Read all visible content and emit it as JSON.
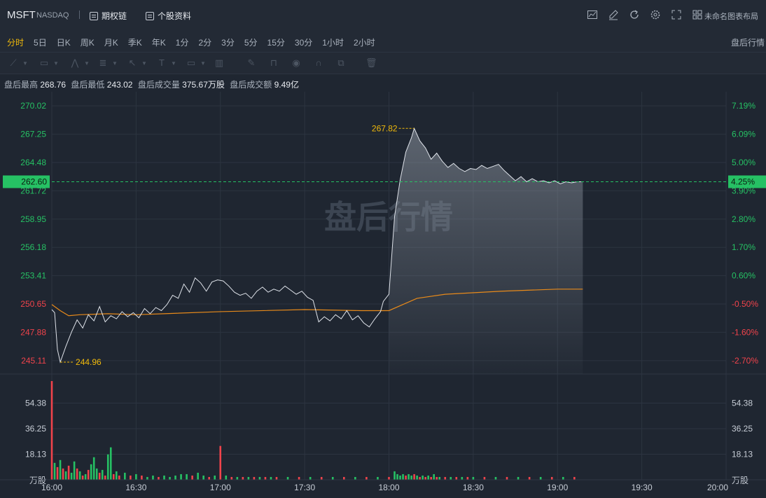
{
  "header": {
    "symbol": "MSFT",
    "exchange": "NASDAQ",
    "option_chain_label": "期权链",
    "profile_label": "个股资料",
    "layout_label": "未命名图表布局"
  },
  "periods": [
    "分时",
    "5日",
    "日K",
    "周K",
    "月K",
    "季K",
    "年K",
    "1分",
    "2分",
    "3分",
    "5分",
    "15分",
    "30分",
    "1小时",
    "2小时"
  ],
  "active_period": "分时",
  "session_label": "盘后行情",
  "info": {
    "high_label": "盘后最高",
    "high": "268.76",
    "low_label": "盘后最低",
    "low": "243.02",
    "volume_label": "盘后成交量",
    "volume": "375.67万股",
    "turnover_label": "盘后成交额",
    "turnover": "9.49亿"
  },
  "watermark": "盘后行情",
  "colors": {
    "up": "#26c164",
    "down": "#f0434b",
    "price_line": "#dfe3ea",
    "avg_line": "#e88a1a",
    "label": "#f0b90b"
  },
  "chart_data": {
    "type": "line",
    "x_ticks": [
      "16:00",
      "16:30",
      "17:00",
      "17:30",
      "18:00",
      "18:30",
      "19:00",
      "19:30",
      "20:00"
    ],
    "y_ticks_left": [
      "270.02",
      "267.25",
      "264.48",
      "261.72",
      "258.95",
      "256.18",
      "253.41",
      "250.65",
      "247.88",
      "245.11"
    ],
    "y_ticks_right": [
      "7.19%",
      "6.09%",
      "5.00%",
      "3.90%",
      "2.80%",
      "1.70%",
      "0.60%",
      "-0.50%",
      "-1.60%",
      "-2.70%"
    ],
    "current_price": "262.60",
    "current_pct": "4.25%",
    "max_label": "267.82",
    "min_label": "244.96",
    "y_range": [
      243.8,
      271.4
    ],
    "price_series": [
      {
        "t": "16:00",
        "v": 250.1
      },
      {
        "t": "16:01",
        "v": 249.8
      },
      {
        "t": "16:02",
        "v": 246.2
      },
      {
        "t": "16:03",
        "v": 244.96
      },
      {
        "t": "16:05",
        "v": 246.5
      },
      {
        "t": "16:07",
        "v": 247.9
      },
      {
        "t": "16:09",
        "v": 249.1
      },
      {
        "t": "16:11",
        "v": 248.3
      },
      {
        "t": "16:13",
        "v": 249.6
      },
      {
        "t": "16:15",
        "v": 249.0
      },
      {
        "t": "16:17",
        "v": 250.4
      },
      {
        "t": "16:19",
        "v": 248.9
      },
      {
        "t": "16:21",
        "v": 249.5
      },
      {
        "t": "16:23",
        "v": 249.2
      },
      {
        "t": "16:25",
        "v": 249.9
      },
      {
        "t": "16:27",
        "v": 249.4
      },
      {
        "t": "16:29",
        "v": 249.8
      },
      {
        "t": "16:31",
        "v": 249.3
      },
      {
        "t": "16:33",
        "v": 250.2
      },
      {
        "t": "16:35",
        "v": 249.7
      },
      {
        "t": "16:37",
        "v": 250.3
      },
      {
        "t": "16:39",
        "v": 250.0
      },
      {
        "t": "16:41",
        "v": 250.6
      },
      {
        "t": "16:43",
        "v": 251.5
      },
      {
        "t": "16:45",
        "v": 251.2
      },
      {
        "t": "16:47",
        "v": 252.6
      },
      {
        "t": "16:49",
        "v": 251.8
      },
      {
        "t": "16:51",
        "v": 253.2
      },
      {
        "t": "16:53",
        "v": 252.7
      },
      {
        "t": "16:55",
        "v": 251.9
      },
      {
        "t": "16:57",
        "v": 252.8
      },
      {
        "t": "16:59",
        "v": 253.0
      },
      {
        "t": "17:01",
        "v": 252.9
      },
      {
        "t": "17:03",
        "v": 252.4
      },
      {
        "t": "17:05",
        "v": 251.8
      },
      {
        "t": "17:07",
        "v": 251.5
      },
      {
        "t": "17:09",
        "v": 251.7
      },
      {
        "t": "17:11",
        "v": 251.2
      },
      {
        "t": "17:13",
        "v": 251.9
      },
      {
        "t": "17:15",
        "v": 252.3
      },
      {
        "t": "17:17",
        "v": 251.8
      },
      {
        "t": "17:19",
        "v": 252.1
      },
      {
        "t": "17:21",
        "v": 251.9
      },
      {
        "t": "17:23",
        "v": 252.4
      },
      {
        "t": "17:25",
        "v": 252.0
      },
      {
        "t": "17:27",
        "v": 251.6
      },
      {
        "t": "17:29",
        "v": 251.9
      },
      {
        "t": "17:31",
        "v": 251.3
      },
      {
        "t": "17:33",
        "v": 251.0
      },
      {
        "t": "17:35",
        "v": 248.9
      },
      {
        "t": "17:37",
        "v": 249.4
      },
      {
        "t": "17:39",
        "v": 249.0
      },
      {
        "t": "17:41",
        "v": 249.6
      },
      {
        "t": "17:43",
        "v": 249.2
      },
      {
        "t": "17:45",
        "v": 250.0
      },
      {
        "t": "17:47",
        "v": 249.1
      },
      {
        "t": "17:49",
        "v": 249.5
      },
      {
        "t": "17:51",
        "v": 248.8
      },
      {
        "t": "17:53",
        "v": 248.4
      },
      {
        "t": "17:55",
        "v": 249.2
      },
      {
        "t": "17:57",
        "v": 249.9
      },
      {
        "t": "17:58",
        "v": 250.9
      },
      {
        "t": "18:00",
        "v": 251.6
      },
      {
        "t": "18:02",
        "v": 259.2
      },
      {
        "t": "18:04",
        "v": 262.8
      },
      {
        "t": "18:06",
        "v": 265.5
      },
      {
        "t": "18:08",
        "v": 266.9
      },
      {
        "t": "18:09",
        "v": 267.82
      },
      {
        "t": "18:11",
        "v": 266.6
      },
      {
        "t": "18:13",
        "v": 265.9
      },
      {
        "t": "18:15",
        "v": 264.8
      },
      {
        "t": "18:17",
        "v": 265.4
      },
      {
        "t": "18:19",
        "v": 264.6
      },
      {
        "t": "18:21",
        "v": 264.0
      },
      {
        "t": "18:23",
        "v": 264.4
      },
      {
        "t": "18:25",
        "v": 263.9
      },
      {
        "t": "18:27",
        "v": 263.6
      },
      {
        "t": "18:29",
        "v": 263.9
      },
      {
        "t": "18:31",
        "v": 263.8
      },
      {
        "t": "18:33",
        "v": 264.2
      },
      {
        "t": "18:35",
        "v": 263.9
      },
      {
        "t": "18:37",
        "v": 264.1
      },
      {
        "t": "18:39",
        "v": 264.3
      },
      {
        "t": "18:41",
        "v": 263.7
      },
      {
        "t": "18:43",
        "v": 263.2
      },
      {
        "t": "18:45",
        "v": 262.7
      },
      {
        "t": "18:47",
        "v": 263.1
      },
      {
        "t": "18:49",
        "v": 262.6
      },
      {
        "t": "18:51",
        "v": 262.9
      },
      {
        "t": "18:53",
        "v": 262.6
      },
      {
        "t": "18:55",
        "v": 262.7
      },
      {
        "t": "18:57",
        "v": 262.5
      },
      {
        "t": "18:59",
        "v": 262.7
      },
      {
        "t": "19:01",
        "v": 262.4
      },
      {
        "t": "19:03",
        "v": 262.6
      },
      {
        "t": "19:05",
        "v": 262.5
      },
      {
        "t": "19:07",
        "v": 262.6
      },
      {
        "t": "19:09",
        "v": 262.6
      }
    ],
    "avg_series": [
      {
        "t": "16:00",
        "v": 250.6
      },
      {
        "t": "16:03",
        "v": 250.0
      },
      {
        "t": "16:06",
        "v": 249.5
      },
      {
        "t": "16:10",
        "v": 249.6
      },
      {
        "t": "16:20",
        "v": 249.7
      },
      {
        "t": "16:30",
        "v": 249.6
      },
      {
        "t": "16:40",
        "v": 249.7
      },
      {
        "t": "17:00",
        "v": 249.9
      },
      {
        "t": "17:30",
        "v": 250.1
      },
      {
        "t": "17:50",
        "v": 250.0
      },
      {
        "t": "18:00",
        "v": 250.0
      },
      {
        "t": "18:05",
        "v": 250.6
      },
      {
        "t": "18:10",
        "v": 251.2
      },
      {
        "t": "18:20",
        "v": 251.6
      },
      {
        "t": "18:40",
        "v": 251.9
      },
      {
        "t": "19:00",
        "v": 252.1
      },
      {
        "t": "19:09",
        "v": 252.1
      }
    ],
    "volume_ticks": [
      "54.38",
      "36.25",
      "18.13"
    ],
    "volume_unit": "万股",
    "volume_range": [
      0,
      72
    ],
    "volume_series": [
      {
        "t": "16:00",
        "v": 70,
        "dir": "down"
      },
      {
        "t": "16:01",
        "v": 12,
        "dir": "up"
      },
      {
        "t": "16:02",
        "v": 9,
        "dir": "down"
      },
      {
        "t": "16:03",
        "v": 14,
        "dir": "up"
      },
      {
        "t": "16:04",
        "v": 8,
        "dir": "down"
      },
      {
        "t": "16:05",
        "v": 6,
        "dir": "up"
      },
      {
        "t": "16:06",
        "v": 10,
        "dir": "down"
      },
      {
        "t": "16:07",
        "v": 5,
        "dir": "up"
      },
      {
        "t": "16:08",
        "v": 13,
        "dir": "up"
      },
      {
        "t": "16:09",
        "v": 8,
        "dir": "down"
      },
      {
        "t": "16:10",
        "v": 6,
        "dir": "up"
      },
      {
        "t": "16:11",
        "v": 3,
        "dir": "down"
      },
      {
        "t": "16:12",
        "v": 4,
        "dir": "up"
      },
      {
        "t": "16:13",
        "v": 7,
        "dir": "down"
      },
      {
        "t": "16:14",
        "v": 11,
        "dir": "up"
      },
      {
        "t": "16:15",
        "v": 16,
        "dir": "up"
      },
      {
        "t": "16:16",
        "v": 8,
        "dir": "up"
      },
      {
        "t": "16:17",
        "v": 5,
        "dir": "down"
      },
      {
        "t": "16:18",
        "v": 7,
        "dir": "up"
      },
      {
        "t": "16:19",
        "v": 3,
        "dir": "down"
      },
      {
        "t": "16:20",
        "v": 18,
        "dir": "up"
      },
      {
        "t": "16:21",
        "v": 23,
        "dir": "up"
      },
      {
        "t": "16:22",
        "v": 4,
        "dir": "down"
      },
      {
        "t": "16:23",
        "v": 6,
        "dir": "up"
      },
      {
        "t": "16:24",
        "v": 3,
        "dir": "down"
      },
      {
        "t": "16:26",
        "v": 5,
        "dir": "up"
      },
      {
        "t": "16:28",
        "v": 3,
        "dir": "down"
      },
      {
        "t": "16:30",
        "v": 4,
        "dir": "up"
      },
      {
        "t": "16:32",
        "v": 3,
        "dir": "down"
      },
      {
        "t": "16:34",
        "v": 2,
        "dir": "up"
      },
      {
        "t": "16:36",
        "v": 3,
        "dir": "up"
      },
      {
        "t": "16:38",
        "v": 2,
        "dir": "down"
      },
      {
        "t": "16:40",
        "v": 3,
        "dir": "up"
      },
      {
        "t": "16:42",
        "v": 2,
        "dir": "up"
      },
      {
        "t": "16:44",
        "v": 3,
        "dir": "up"
      },
      {
        "t": "16:46",
        "v": 4,
        "dir": "up"
      },
      {
        "t": "16:48",
        "v": 4,
        "dir": "up"
      },
      {
        "t": "16:50",
        "v": 3,
        "dir": "down"
      },
      {
        "t": "16:52",
        "v": 5,
        "dir": "up"
      },
      {
        "t": "16:54",
        "v": 3,
        "dir": "up"
      },
      {
        "t": "16:56",
        "v": 2,
        "dir": "down"
      },
      {
        "t": "16:58",
        "v": 3,
        "dir": "up"
      },
      {
        "t": "17:00",
        "v": 24,
        "dir": "down"
      },
      {
        "t": "17:02",
        "v": 3,
        "dir": "up"
      },
      {
        "t": "17:04",
        "v": 2,
        "dir": "down"
      },
      {
        "t": "17:06",
        "v": 2,
        "dir": "up"
      },
      {
        "t": "17:08",
        "v": 2,
        "dir": "down"
      },
      {
        "t": "17:10",
        "v": 2,
        "dir": "up"
      },
      {
        "t": "17:12",
        "v": 2,
        "dir": "down"
      },
      {
        "t": "17:14",
        "v": 2,
        "dir": "up"
      },
      {
        "t": "17:16",
        "v": 2,
        "dir": "down"
      },
      {
        "t": "17:18",
        "v": 2,
        "dir": "up"
      },
      {
        "t": "17:20",
        "v": 2,
        "dir": "down"
      },
      {
        "t": "17:24",
        "v": 2,
        "dir": "up"
      },
      {
        "t": "17:28",
        "v": 2,
        "dir": "down"
      },
      {
        "t": "17:32",
        "v": 2,
        "dir": "up"
      },
      {
        "t": "17:36",
        "v": 2,
        "dir": "down"
      },
      {
        "t": "17:40",
        "v": 2,
        "dir": "up"
      },
      {
        "t": "17:44",
        "v": 2,
        "dir": "down"
      },
      {
        "t": "17:48",
        "v": 2,
        "dir": "up"
      },
      {
        "t": "17:52",
        "v": 2,
        "dir": "down"
      },
      {
        "t": "17:56",
        "v": 2,
        "dir": "up"
      },
      {
        "t": "18:00",
        "v": 2,
        "dir": "down"
      },
      {
        "t": "18:02",
        "v": 6,
        "dir": "up"
      },
      {
        "t": "18:03",
        "v": 4,
        "dir": "up"
      },
      {
        "t": "18:04",
        "v": 3,
        "dir": "up"
      },
      {
        "t": "18:05",
        "v": 4,
        "dir": "up"
      },
      {
        "t": "18:06",
        "v": 3,
        "dir": "down"
      },
      {
        "t": "18:07",
        "v": 4,
        "dir": "up"
      },
      {
        "t": "18:08",
        "v": 3,
        "dir": "up"
      },
      {
        "t": "18:09",
        "v": 4,
        "dir": "down"
      },
      {
        "t": "18:10",
        "v": 3,
        "dir": "up"
      },
      {
        "t": "18:11",
        "v": 2,
        "dir": "down"
      },
      {
        "t": "18:12",
        "v": 3,
        "dir": "up"
      },
      {
        "t": "18:13",
        "v": 2,
        "dir": "down"
      },
      {
        "t": "18:14",
        "v": 3,
        "dir": "up"
      },
      {
        "t": "18:15",
        "v": 2,
        "dir": "down"
      },
      {
        "t": "18:16",
        "v": 4,
        "dir": "up"
      },
      {
        "t": "18:17",
        "v": 2,
        "dir": "down"
      },
      {
        "t": "18:18",
        "v": 2,
        "dir": "up"
      },
      {
        "t": "18:20",
        "v": 2,
        "dir": "down"
      },
      {
        "t": "18:22",
        "v": 2,
        "dir": "up"
      },
      {
        "t": "18:24",
        "v": 2,
        "dir": "down"
      },
      {
        "t": "18:26",
        "v": 2,
        "dir": "up"
      },
      {
        "t": "18:28",
        "v": 2,
        "dir": "down"
      },
      {
        "t": "18:30",
        "v": 2,
        "dir": "up"
      },
      {
        "t": "18:34",
        "v": 2,
        "dir": "down"
      },
      {
        "t": "18:38",
        "v": 2,
        "dir": "up"
      },
      {
        "t": "18:42",
        "v": 2,
        "dir": "down"
      },
      {
        "t": "18:46",
        "v": 2,
        "dir": "up"
      },
      {
        "t": "18:50",
        "v": 2,
        "dir": "down"
      },
      {
        "t": "18:54",
        "v": 2,
        "dir": "up"
      },
      {
        "t": "18:58",
        "v": 2,
        "dir": "down"
      },
      {
        "t": "19:02",
        "v": 2,
        "dir": "up"
      },
      {
        "t": "19:06",
        "v": 2,
        "dir": "down"
      }
    ]
  }
}
